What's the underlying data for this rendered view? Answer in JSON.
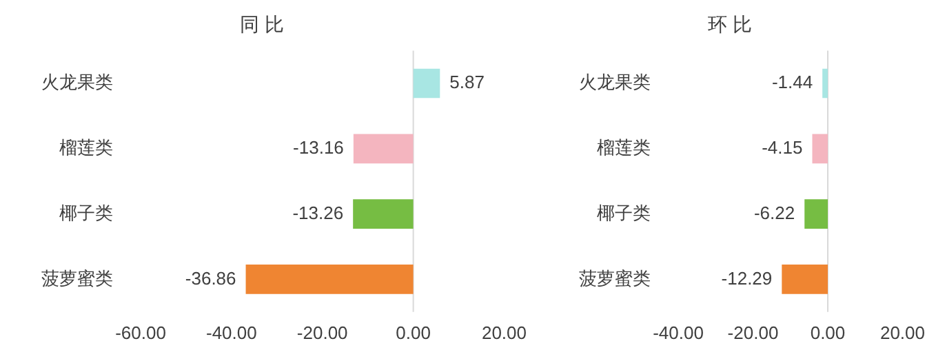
{
  "chart_data": [
    {
      "type": "bar",
      "orientation": "horizontal",
      "title": "同 比",
      "categories": [
        "火龙果类",
        "榴莲类",
        "椰子类",
        "菠萝蜜类"
      ],
      "values": [
        5.87,
        -13.16,
        -13.26,
        -36.86
      ],
      "colors": [
        "#a8e6e3",
        "#f4b5bf",
        "#76bd43",
        "#ef8532"
      ],
      "xlim": [
        -60,
        20
      ],
      "xticks": [
        {
          "value": -60,
          "label": "-60.00"
        },
        {
          "value": -40,
          "label": "-40.00"
        },
        {
          "value": -20,
          "label": "-20.00"
        },
        {
          "value": 0,
          "label": "0.00"
        },
        {
          "value": 20,
          "label": "20.00"
        }
      ],
      "data_labels": true,
      "grid": false,
      "legend": false,
      "ref_lines": [
        {
          "axis": "x",
          "value": 0,
          "color": "#d9d9d9"
        }
      ]
    },
    {
      "type": "bar",
      "orientation": "horizontal",
      "title": "环 比",
      "categories": [
        "火龙果类",
        "榴莲类",
        "椰子类",
        "菠萝蜜类"
      ],
      "values": [
        -1.44,
        -4.15,
        -6.22,
        -12.29
      ],
      "colors": [
        "#a8e6e3",
        "#f4b5bf",
        "#76bd43",
        "#ef8532"
      ],
      "xlim": [
        -40,
        20
      ],
      "xticks": [
        {
          "value": -40,
          "label": "-40.00"
        },
        {
          "value": -20,
          "label": "-20.00"
        },
        {
          "value": 0,
          "label": "0.00"
        },
        {
          "value": 20,
          "label": "20.00"
        }
      ],
      "data_labels": true,
      "grid": false,
      "legend": false,
      "ref_lines": [
        {
          "axis": "x",
          "value": 0,
          "color": "#d9d9d9"
        }
      ]
    }
  ]
}
